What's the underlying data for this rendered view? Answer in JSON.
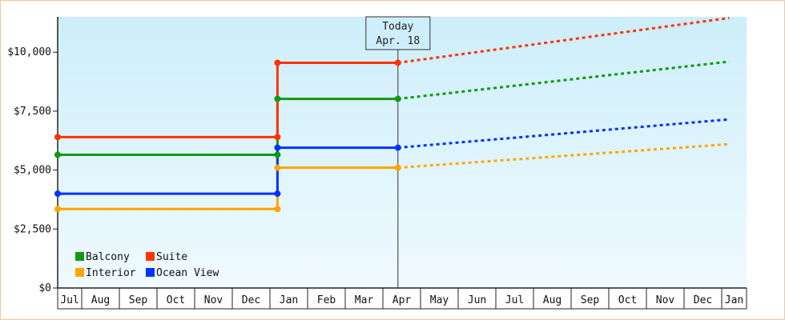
{
  "chart_data": {
    "type": "line",
    "x": [
      "Jul",
      "Aug",
      "Sep",
      "Oct",
      "Nov",
      "Dec",
      "Jan",
      "Feb",
      "Mar",
      "Apr",
      "May",
      "Jun",
      "Jul",
      "Aug",
      "Sep",
      "Oct",
      "Nov",
      "Dec",
      "Jan"
    ],
    "ylim": [
      0,
      11500
    ],
    "yticks": [
      "$0",
      "$2,500",
      "$5,000",
      "$7,500",
      "$10,000"
    ],
    "ytick_values": [
      0,
      2500,
      5000,
      7500,
      10000
    ],
    "grid": false,
    "legend": "bottom-left",
    "today_marker": {
      "line1": "Today",
      "line2": "Apr. 18",
      "x_value": 9.4
    },
    "series": [
      {
        "name": "Balcony",
        "color": "#119911",
        "historical": [
          [
            0,
            5650
          ],
          [
            6.2,
            5650
          ],
          [
            6.2,
            8020
          ],
          [
            9.4,
            8020
          ]
        ],
        "projected": [
          [
            9.4,
            8020
          ],
          [
            18.3,
            9600
          ]
        ]
      },
      {
        "name": "Suite",
        "color": "#ff3300",
        "historical": [
          [
            0,
            6400
          ],
          [
            6.2,
            6400
          ],
          [
            6.2,
            9550
          ],
          [
            9.4,
            9550
          ]
        ],
        "projected": [
          [
            9.4,
            9550
          ],
          [
            18.3,
            11450
          ]
        ]
      },
      {
        "name": "Interior",
        "color": "#ffa500",
        "historical": [
          [
            0,
            3350
          ],
          [
            6.2,
            3350
          ],
          [
            6.2,
            5100
          ],
          [
            9.4,
            5100
          ]
        ],
        "projected": [
          [
            9.4,
            5100
          ],
          [
            18.3,
            6100
          ]
        ]
      },
      {
        "name": "Ocean View",
        "color": "#0033ff",
        "historical": [
          [
            0,
            4000
          ],
          [
            6.2,
            4000
          ],
          [
            6.2,
            5950
          ],
          [
            9.4,
            5950
          ]
        ],
        "projected": [
          [
            9.4,
            5950
          ],
          [
            18.3,
            7150
          ]
        ]
      }
    ]
  }
}
